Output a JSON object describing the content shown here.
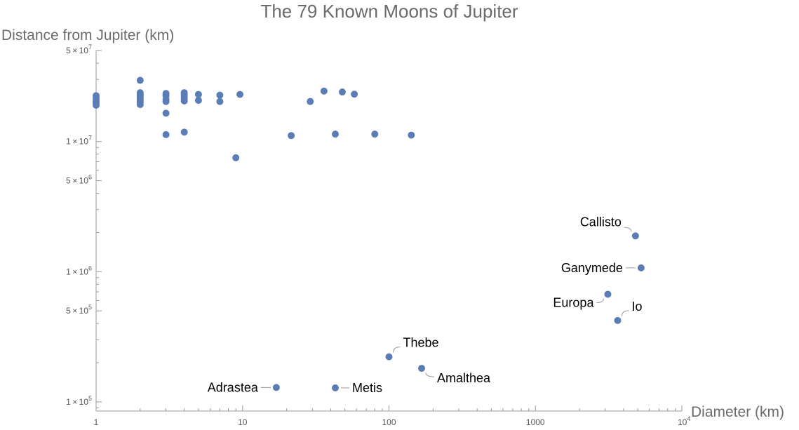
{
  "chart_data": {
    "type": "scatter",
    "title": "The 79 Known Moons of Jupiter",
    "xlabel": "Diameter (km)",
    "ylabel": "Distance from Jupiter (km)",
    "xscale": "log",
    "yscale": "log",
    "xlim": [
      1,
      10000
    ],
    "ylim": [
      85000,
      50000000
    ],
    "grid": false,
    "marker_color": "#5b7db5",
    "x_ticks": [
      {
        "value": 1,
        "label": "1"
      },
      {
        "value": 10,
        "label": "10"
      },
      {
        "value": 100,
        "label": "100"
      },
      {
        "value": 1000,
        "label": "1000"
      },
      {
        "value": 10000,
        "label": "10",
        "sup": "4"
      }
    ],
    "y_ticks": [
      {
        "value": 100000,
        "mant": "1",
        "exp": "5"
      },
      {
        "value": 500000,
        "mant": "5",
        "exp": "5"
      },
      {
        "value": 1000000,
        "mant": "1",
        "exp": "6"
      },
      {
        "value": 5000000,
        "mant": "5",
        "exp": "6"
      },
      {
        "value": 10000000,
        "mant": "1",
        "exp": "7"
      },
      {
        "value": 50000000,
        "mant": "5",
        "exp": "7"
      }
    ],
    "times_symbol": "×",
    "points": [
      {
        "x": 1,
        "y": 22500000
      },
      {
        "x": 1,
        "y": 21500000
      },
      {
        "x": 1,
        "y": 20800000
      },
      {
        "x": 1,
        "y": 20100000
      },
      {
        "x": 1,
        "y": 19600000
      },
      {
        "x": 1,
        "y": 19000000
      },
      {
        "x": 2,
        "y": 29500000
      },
      {
        "x": 2,
        "y": 23700000
      },
      {
        "x": 2,
        "y": 22900000
      },
      {
        "x": 2,
        "y": 22100000
      },
      {
        "x": 2,
        "y": 21300000
      },
      {
        "x": 2,
        "y": 20600000
      },
      {
        "x": 2,
        "y": 19900000
      },
      {
        "x": 2,
        "y": 19200000
      },
      {
        "x": 3,
        "y": 23400000
      },
      {
        "x": 3,
        "y": 22500000
      },
      {
        "x": 3,
        "y": 21000000
      },
      {
        "x": 3,
        "y": 20300000
      },
      {
        "x": 3,
        "y": 16500000
      },
      {
        "x": 3,
        "y": 11300000
      },
      {
        "x": 4,
        "y": 23700000
      },
      {
        "x": 4,
        "y": 23000000
      },
      {
        "x": 4,
        "y": 22200000
      },
      {
        "x": 4,
        "y": 21300000
      },
      {
        "x": 4,
        "y": 20500000
      },
      {
        "x": 4,
        "y": 11800000
      },
      {
        "x": 5,
        "y": 23000000
      },
      {
        "x": 5,
        "y": 20700000
      },
      {
        "x": 7,
        "y": 22700000
      },
      {
        "x": 7,
        "y": 20300000
      },
      {
        "x": 9,
        "y": 7500000
      },
      {
        "x": 9.6,
        "y": 23000000
      },
      {
        "x": 21.5,
        "y": 11100000
      },
      {
        "x": 29,
        "y": 20300000
      },
      {
        "x": 36,
        "y": 24400000
      },
      {
        "x": 43,
        "y": 11400000
      },
      {
        "x": 48,
        "y": 24000000
      },
      {
        "x": 58,
        "y": 23100000
      },
      {
        "x": 80,
        "y": 11400000
      },
      {
        "x": 142,
        "y": 11200000
      },
      {
        "x": 17,
        "y": 129000,
        "label": "Adrastea",
        "side": "left"
      },
      {
        "x": 43,
        "y": 128000,
        "label": "Metis",
        "side": "right"
      },
      {
        "x": 100,
        "y": 222000,
        "label": "Thebe",
        "side": "upright"
      },
      {
        "x": 167,
        "y": 181000,
        "label": "Amalthea",
        "side": "downright"
      },
      {
        "x": 3122,
        "y": 671000,
        "label": "Europa",
        "side": "downleft"
      },
      {
        "x": 3643,
        "y": 422000,
        "label": "Io",
        "side": "upright"
      },
      {
        "x": 4821,
        "y": 1883000,
        "label": "Callisto",
        "side": "upleft"
      },
      {
        "x": 5268,
        "y": 1070000,
        "label": "Ganymede",
        "side": "left"
      }
    ]
  }
}
